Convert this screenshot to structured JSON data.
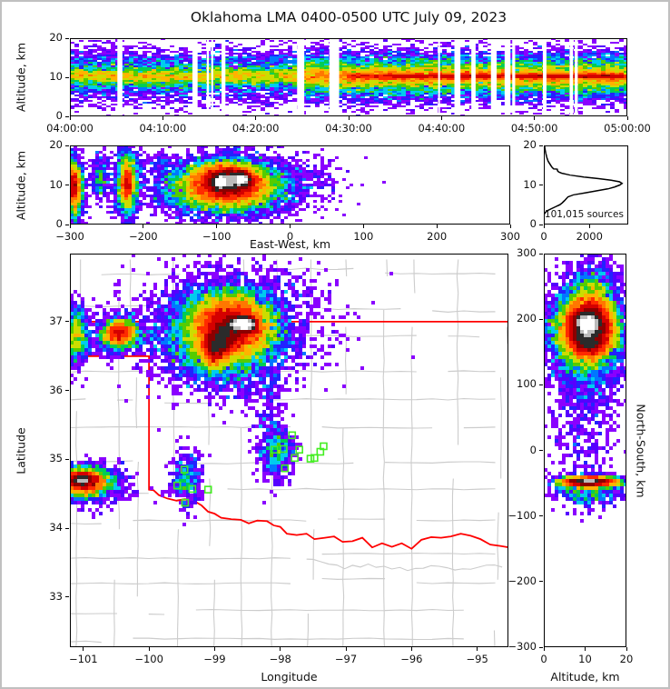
{
  "title": "Oklahoma LMA 0400-0500 UTC July 09, 2023",
  "colors": {
    "background": "#ffffff",
    "frame": "#c0c0c0",
    "axis": "#000000",
    "county": "#cccccc",
    "state_border": "#ff0000",
    "station": "#44ee22",
    "curve": "#000000",
    "density_ramp": [
      "#8A00FF",
      "#5500FF",
      "#2222FF",
      "#0077FF",
      "#00CCEE",
      "#00CC55",
      "#55CC00",
      "#CCDD00",
      "#FFB300",
      "#FF7700",
      "#FF2A00",
      "#D40000",
      "#8B0000",
      "#2B2B2B",
      "#BBBBBB",
      "#FFFFFF"
    ],
    "density_thresholds": [
      1,
      2,
      3,
      4,
      5,
      7,
      9,
      12,
      17,
      24,
      34,
      50,
      80,
      130,
      200,
      290
    ]
  },
  "chart_data": [
    {
      "id": "time",
      "type": "heatmap",
      "xlim": [
        0,
        60
      ],
      "ylim": [
        0,
        20
      ],
      "xticks": [
        [
          0,
          "04:00:00"
        ],
        [
          10,
          "04:10:00"
        ],
        [
          20,
          "04:20:00"
        ],
        [
          30,
          "04:30:00"
        ],
        [
          40,
          "04:40:00"
        ],
        [
          50,
          "04:50:00"
        ],
        [
          60,
          "05:00:00"
        ]
      ],
      "yticks": [
        [
          0,
          "0"
        ],
        [
          10,
          "10"
        ],
        [
          20,
          "20"
        ]
      ],
      "ylabel": "Altitude, km",
      "cell": [
        5,
        2
      ],
      "seed": 11,
      "blobs": [
        {
          "x0": 0,
          "x1": 60,
          "cy": 10.2,
          "sy": 1.2,
          "n": 9000
        },
        {
          "x0": 0,
          "x1": 60,
          "cy": 9.3,
          "sy": 3.0,
          "n": 7000
        },
        {
          "x0": 0,
          "x1": 60,
          "cy": 12.5,
          "sy": 2.6,
          "n": 4000
        },
        {
          "x0": 0,
          "x1": 60,
          "cy": 10.0,
          "sy": 5.5,
          "n": 1500
        },
        {
          "x0": 25,
          "x1": 60,
          "cy": 10.0,
          "sy": 2.8,
          "n": 8000
        },
        {
          "x0": 30,
          "x1": 60,
          "cy": 10.2,
          "sy": 0.5,
          "n": 4000
        },
        {
          "x0": 35,
          "x1": 60,
          "cy": 10.3,
          "sy": 0.25,
          "n": 2500
        }
      ],
      "gaps": {
        "n": 18,
        "seed": 5
      }
    },
    {
      "id": "ew",
      "type": "heatmap",
      "xlim": [
        -300,
        300
      ],
      "ylim": [
        0,
        20
      ],
      "xticks": [
        [
          -300,
          "−300"
        ],
        [
          -200,
          "−200"
        ],
        [
          -100,
          "−100"
        ],
        [
          0,
          "0"
        ],
        [
          100,
          "100"
        ],
        [
          200,
          "200"
        ],
        [
          300,
          "300"
        ]
      ],
      "yticks": [
        [
          0,
          "0"
        ],
        [
          10,
          "10"
        ],
        [
          20,
          "20"
        ]
      ],
      "xlabel": "East-West, km",
      "ylabel": "Altitude, km",
      "cell": [
        4,
        3
      ],
      "seed": 22,
      "blobs": [
        {
          "cx": -85,
          "cy": 10.5,
          "sx": 28,
          "sy": 2.6,
          "n": 9000
        },
        {
          "cx": -85,
          "cy": 11.0,
          "sx": 14,
          "sy": 1.5,
          "n": 6000
        },
        {
          "cx": -95,
          "cy": 10.8,
          "sx": 5,
          "sy": 0.9,
          "n": 3000
        },
        {
          "cx": -65,
          "cy": 11.3,
          "sx": 6,
          "sy": 0.9,
          "n": 3000
        },
        {
          "cx": -90,
          "cy": 8.5,
          "sx": 45,
          "sy": 3.2,
          "n": 4000
        },
        {
          "cx": -80,
          "cy": 11.0,
          "sx": 60,
          "sy": 4.5,
          "n": 1400
        },
        {
          "x0": -40,
          "x1": 60,
          "cy": 11.0,
          "sy": 3.5,
          "n": 130
        },
        {
          "cx": -295,
          "cy": 9.0,
          "sx": 7,
          "sy": 4.0,
          "n": 1600
        },
        {
          "cx": -295,
          "cy": 9.5,
          "sx": 4,
          "sy": 2.0,
          "n": 900
        },
        {
          "cx": -222,
          "cy": 10.5,
          "sx": 8,
          "sy": 4.5,
          "n": 1500
        },
        {
          "cx": -222,
          "cy": 10.0,
          "sx": 4,
          "sy": 2.0,
          "n": 700
        },
        {
          "cx": -258,
          "cy": 12.0,
          "sx": 6,
          "sy": 3.0,
          "n": 250
        },
        {
          "cx": -180,
          "cy": 16.0,
          "sx": 18,
          "sy": 1.5,
          "n": 70
        }
      ]
    },
    {
      "id": "hist",
      "type": "line",
      "xlim": [
        0,
        3700
      ],
      "ylim": [
        0,
        20
      ],
      "xticks": [
        [
          0,
          "0"
        ],
        [
          2000,
          "2000"
        ]
      ],
      "yticks": [
        [
          0,
          "0"
        ],
        [
          10,
          "10"
        ],
        [
          20,
          "20"
        ]
      ],
      "annotation": "101,015 sources",
      "curve": [
        [
          2.5,
          10
        ],
        [
          3,
          60
        ],
        [
          3.5,
          150
        ],
        [
          4,
          330
        ],
        [
          4.5,
          520
        ],
        [
          5,
          700
        ],
        [
          5.5,
          810
        ],
        [
          6,
          900
        ],
        [
          6.5,
          980
        ],
        [
          7,
          1060
        ],
        [
          7.5,
          1300
        ],
        [
          8,
          1800
        ],
        [
          8.5,
          2300
        ],
        [
          9,
          2800
        ],
        [
          9.5,
          3100
        ],
        [
          10,
          3330
        ],
        [
          10.4,
          3430
        ],
        [
          10.8,
          3320
        ],
        [
          11.2,
          2950
        ],
        [
          11.6,
          2400
        ],
        [
          12,
          1750
        ],
        [
          12.5,
          1150
        ],
        [
          13,
          780
        ],
        [
          13.3,
          650
        ],
        [
          13.6,
          600
        ],
        [
          14,
          590
        ],
        [
          14.1,
          430
        ],
        [
          14.5,
          360
        ],
        [
          15,
          300
        ],
        [
          16,
          190
        ],
        [
          17,
          130
        ],
        [
          18,
          88
        ],
        [
          19,
          55
        ],
        [
          19.6,
          40
        ],
        [
          20,
          30
        ]
      ]
    },
    {
      "id": "map",
      "type": "heatmap",
      "xlim": [
        -101.205,
        -94.525
      ],
      "ylim": [
        32.27,
        37.99
      ],
      "xticks": [
        [
          -101,
          "−101"
        ],
        [
          -100,
          "−100"
        ],
        [
          -99,
          "−99"
        ],
        [
          -98,
          "−98"
        ],
        [
          -97,
          "−97"
        ],
        [
          -96,
          "−96"
        ],
        [
          -95,
          "−95"
        ]
      ],
      "yticks": [
        [
          33,
          "33"
        ],
        [
          34,
          "34"
        ],
        [
          35,
          "35"
        ],
        [
          36,
          "36"
        ],
        [
          37,
          "37"
        ]
      ],
      "xlabel": "Longitude",
      "ylabel": "Latitude",
      "cell": [
        4,
        4
      ],
      "seed": 33,
      "county_grid": {
        "seed": 9,
        "dlon": 0.52,
        "dlat": 0.49
      },
      "state_border": [
        [
          [
            -101.205,
            37
          ],
          [
            -94.525,
            37
          ]
        ],
        [
          [
            -101.205,
            36.5
          ],
          [
            -100.0,
            36.5
          ],
          [
            -100.0,
            34.56
          ],
          [
            -99.93,
            34.55
          ],
          [
            -99.85,
            34.48
          ],
          [
            -99.72,
            34.43
          ],
          [
            -99.58,
            34.4
          ],
          [
            -99.45,
            34.42
          ],
          [
            -99.32,
            34.4
          ],
          [
            -99.2,
            34.33
          ],
          [
            -99.1,
            34.24
          ],
          [
            -99.0,
            34.21
          ],
          [
            -98.9,
            34.15
          ],
          [
            -98.75,
            34.13
          ],
          [
            -98.6,
            34.12
          ],
          [
            -98.48,
            34.07
          ],
          [
            -98.35,
            34.11
          ],
          [
            -98.2,
            34.1
          ],
          [
            -98.1,
            34.04
          ],
          [
            -98.0,
            34.02
          ],
          [
            -97.9,
            33.92
          ],
          [
            -97.75,
            33.9
          ],
          [
            -97.6,
            33.92
          ],
          [
            -97.48,
            33.84
          ],
          [
            -97.32,
            33.86
          ],
          [
            -97.18,
            33.88
          ],
          [
            -97.05,
            33.8
          ],
          [
            -96.9,
            33.81
          ],
          [
            -96.75,
            33.86
          ],
          [
            -96.6,
            33.72
          ],
          [
            -96.45,
            33.78
          ],
          [
            -96.3,
            33.73
          ],
          [
            -96.15,
            33.78
          ],
          [
            -96.0,
            33.7
          ],
          [
            -95.85,
            33.83
          ],
          [
            -95.7,
            33.87
          ],
          [
            -95.55,
            33.86
          ],
          [
            -95.4,
            33.88
          ],
          [
            -95.25,
            33.92
          ],
          [
            -95.1,
            33.89
          ],
          [
            -94.95,
            33.84
          ],
          [
            -94.8,
            33.76
          ],
          [
            -94.65,
            33.74
          ],
          [
            -94.525,
            33.72
          ]
        ]
      ],
      "blobs": [
        {
          "cx": -98.75,
          "cy": 36.95,
          "sx": 0.28,
          "sy": 0.2,
          "n": 8000
        },
        {
          "cx": -98.62,
          "cy": 36.97,
          "sx": 0.09,
          "sy": 0.05,
          "n": 3200
        },
        {
          "cx": -98.5,
          "cy": 36.96,
          "sx": 0.07,
          "sy": 0.05,
          "n": 2600
        },
        {
          "cx": -98.85,
          "cy": 36.78,
          "sx": 0.12,
          "sy": 0.12,
          "n": 2600
        },
        {
          "cx": -99.0,
          "cy": 36.62,
          "sx": 0.1,
          "sy": 0.12,
          "n": 2600
        },
        {
          "cx": -98.85,
          "cy": 36.8,
          "sx": 0.45,
          "sy": 0.35,
          "n": 5000
        },
        {
          "cx": -98.8,
          "cy": 36.9,
          "sx": 0.75,
          "sy": 0.45,
          "n": 1600
        },
        {
          "cx": -98.6,
          "cy": 37.35,
          "sx": 0.55,
          "sy": 0.22,
          "n": 220
        },
        {
          "cx": -98.2,
          "cy": 35.75,
          "sx": 0.12,
          "sy": 0.4,
          "n": 150
        },
        {
          "cx": -100.45,
          "cy": 36.83,
          "sx": 0.12,
          "sy": 0.09,
          "n": 1400
        },
        {
          "cx": -100.42,
          "cy": 36.8,
          "sx": 0.28,
          "sy": 0.16,
          "n": 500
        },
        {
          "cx": -101.12,
          "cy": 36.8,
          "sx": 0.1,
          "sy": 0.22,
          "n": 700
        },
        {
          "cx": -101.0,
          "cy": 34.68,
          "sx": 0.18,
          "sy": 0.09,
          "n": 2600
        },
        {
          "cx": -101.02,
          "cy": 34.7,
          "sx": 0.09,
          "sy": 0.04,
          "n": 1500
        },
        {
          "cx": -100.9,
          "cy": 34.62,
          "sx": 0.3,
          "sy": 0.14,
          "n": 700
        },
        {
          "cx": -98.05,
          "cy": 35.1,
          "sx": 0.13,
          "sy": 0.2,
          "n": 420
        },
        {
          "cx": -99.42,
          "cy": 34.7,
          "sx": 0.12,
          "sy": 0.22,
          "n": 330
        }
      ],
      "stations": [
        [
          -97.82,
          35.35
        ],
        [
          -98.09,
          35.14
        ],
        [
          -97.95,
          35.15
        ],
        [
          -97.71,
          35.14
        ],
        [
          -97.39,
          35.11
        ],
        [
          -97.48,
          35.02
        ],
        [
          -97.54,
          35.01
        ],
        [
          -97.78,
          35.02
        ],
        [
          -97.93,
          34.87
        ],
        [
          -97.34,
          35.19
        ],
        [
          -99.46,
          34.85
        ],
        [
          -99.57,
          34.62
        ],
        [
          -99.34,
          34.57
        ],
        [
          -99.1,
          34.56
        ],
        [
          -99.45,
          34.37
        ]
      ]
    },
    {
      "id": "ns",
      "type": "heatmap",
      "xlim": [
        0,
        20
      ],
      "ylim": [
        -300,
        300
      ],
      "xticks": [
        [
          0,
          "0"
        ],
        [
          10,
          "10"
        ],
        [
          20,
          "20"
        ]
      ],
      "yticks": [
        [
          300,
          "300"
        ],
        [
          200,
          "200"
        ],
        [
          100,
          "100"
        ],
        [
          0,
          "0"
        ],
        [
          -100,
          "−100"
        ],
        [
          -200,
          "−200"
        ],
        [
          -300,
          "−300"
        ]
      ],
      "xlabel": "Altitude, km",
      "ylabel_right": "North-South, km",
      "cell": [
        4,
        4
      ],
      "seed": 44,
      "blobs": [
        {
          "cx": 11.0,
          "cy": 190,
          "sx": 2.8,
          "sy": 20,
          "n": 9000
        },
        {
          "cx": 10.5,
          "cy": 193,
          "sx": 1.5,
          "sy": 9,
          "n": 6000
        },
        {
          "cx": 11.0,
          "cy": 165,
          "sx": 2.2,
          "sy": 10,
          "n": 2500
        },
        {
          "cx": 10.0,
          "cy": 180,
          "sx": 4.0,
          "sy": 32,
          "n": 4000
        },
        {
          "cx": 11.0,
          "cy": 185,
          "sx": 5.5,
          "sy": 48,
          "n": 1300
        },
        {
          "cx": 12.0,
          "cy": 245,
          "sx": 3.0,
          "sy": 18,
          "n": 500
        },
        {
          "cx": 10.0,
          "cy": 60,
          "sx": 4.5,
          "sy": 75,
          "n": 650
        },
        {
          "cx": 11.0,
          "cy": -48,
          "sx": 3.5,
          "sy": 4.0,
          "n": 2200
        },
        {
          "cx": 10.5,
          "cy": -48,
          "sx": 2.0,
          "sy": 1.2,
          "n": 900
        },
        {
          "cx": 11.0,
          "cy": -60,
          "sx": 4.0,
          "sy": 12,
          "n": 500
        }
      ]
    }
  ]
}
